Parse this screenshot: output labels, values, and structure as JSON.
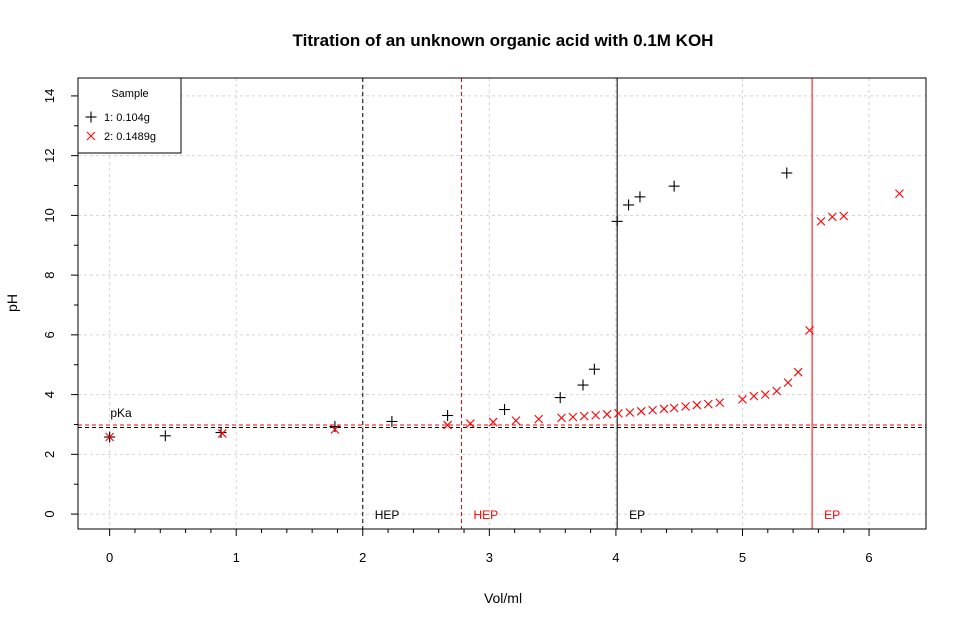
{
  "chart_data": {
    "type": "scatter",
    "title": "Titration of an unknown organic acid with 0.1M KOH",
    "xlabel": "Vol/ml",
    "ylabel": "pH",
    "xlim": [
      -0.25,
      6.45
    ],
    "ylim": [
      -0.5,
      14.6
    ],
    "x_ticks": [
      0,
      1,
      2,
      3,
      4,
      5,
      6
    ],
    "y_ticks": [
      0,
      2,
      4,
      6,
      8,
      10,
      12,
      14
    ],
    "grid": true,
    "legend": {
      "title": "Sample",
      "position": "top-left",
      "entries": [
        "1: 0.104g",
        "2: 0.1489g"
      ]
    },
    "series": [
      {
        "name": "1: 0.104g",
        "color": "#000000",
        "marker": "plus",
        "points": [
          [
            0.0,
            2.58
          ],
          [
            0.44,
            2.62
          ],
          [
            0.88,
            2.73
          ],
          [
            1.78,
            2.93
          ],
          [
            2.23,
            3.1
          ],
          [
            2.67,
            3.3
          ],
          [
            3.12,
            3.5
          ],
          [
            3.56,
            3.9
          ],
          [
            3.74,
            4.32
          ],
          [
            3.83,
            4.85
          ],
          [
            4.01,
            9.8
          ],
          [
            4.1,
            10.35
          ],
          [
            4.19,
            10.62
          ],
          [
            4.46,
            10.98
          ],
          [
            5.35,
            11.42
          ]
        ]
      },
      {
        "name": "2: 0.1489g",
        "color": "#ff0000",
        "marker": "cross",
        "points": [
          [
            0.0,
            2.58
          ],
          [
            0.89,
            2.7
          ],
          [
            1.78,
            2.83
          ],
          [
            2.67,
            2.98
          ],
          [
            2.85,
            3.03
          ],
          [
            3.03,
            3.08
          ],
          [
            3.21,
            3.13
          ],
          [
            3.39,
            3.18
          ],
          [
            3.57,
            3.22
          ],
          [
            3.66,
            3.25
          ],
          [
            3.75,
            3.28
          ],
          [
            3.84,
            3.31
          ],
          [
            3.93,
            3.34
          ],
          [
            4.02,
            3.37
          ],
          [
            4.11,
            3.4
          ],
          [
            4.2,
            3.44
          ],
          [
            4.29,
            3.48
          ],
          [
            4.38,
            3.52
          ],
          [
            4.46,
            3.55
          ],
          [
            4.55,
            3.6
          ],
          [
            4.64,
            3.65
          ],
          [
            4.73,
            3.68
          ],
          [
            4.82,
            3.73
          ],
          [
            5.0,
            3.84
          ],
          [
            5.09,
            3.95
          ],
          [
            5.18,
            4.0
          ],
          [
            5.27,
            4.12
          ],
          [
            5.36,
            4.4
          ],
          [
            5.44,
            4.75
          ],
          [
            5.53,
            6.15
          ],
          [
            5.62,
            9.8
          ],
          [
            5.71,
            9.95
          ],
          [
            5.8,
            9.98
          ],
          [
            6.24,
            10.73
          ]
        ]
      }
    ],
    "reference_lines": {
      "pka_label": "pKa",
      "hep_label": "HEP",
      "ep_label": "EP",
      "horizontal": [
        {
          "y": 2.9,
          "color": "#000000",
          "style": "dashed"
        },
        {
          "y": 2.98,
          "color": "#ff0000",
          "style": "dashed"
        }
      ],
      "vertical": [
        {
          "x": 2.0,
          "color": "#000000",
          "style": "dashed",
          "label": "HEP"
        },
        {
          "x": 2.78,
          "color": "#ff0000",
          "style": "dashed",
          "label": "HEP"
        },
        {
          "x": 4.01,
          "color": "#000000",
          "style": "solid",
          "label": "EP"
        },
        {
          "x": 5.55,
          "color": "#ff0000",
          "style": "solid",
          "label": "EP"
        }
      ]
    }
  }
}
